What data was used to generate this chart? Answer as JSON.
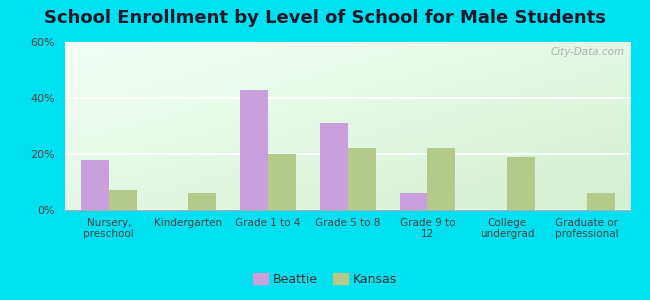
{
  "title": "School Enrollment by Level of School for Male Students",
  "categories": [
    "Nursery,\npreschool",
    "Kindergarten",
    "Grade 1 to 4",
    "Grade 5 to 8",
    "Grade 9 to\n12",
    "College\nundergrad",
    "Graduate or\nprofessional"
  ],
  "beattie": [
    18,
    0,
    43,
    31,
    6,
    0,
    0
  ],
  "kansas": [
    7,
    6,
    20,
    22,
    22,
    19,
    6
  ],
  "beattie_color": "#c9a0dc",
  "kansas_color": "#b5c98a",
  "ylim": [
    0,
    60
  ],
  "yticks": [
    0,
    20,
    40,
    60
  ],
  "ytick_labels": [
    "0%",
    "20%",
    "40%",
    "60%"
  ],
  "background_outer": "#00e0f0",
  "title_fontsize": 13,
  "bar_width": 0.35,
  "legend_labels": [
    "Beattie",
    "Kansas"
  ]
}
